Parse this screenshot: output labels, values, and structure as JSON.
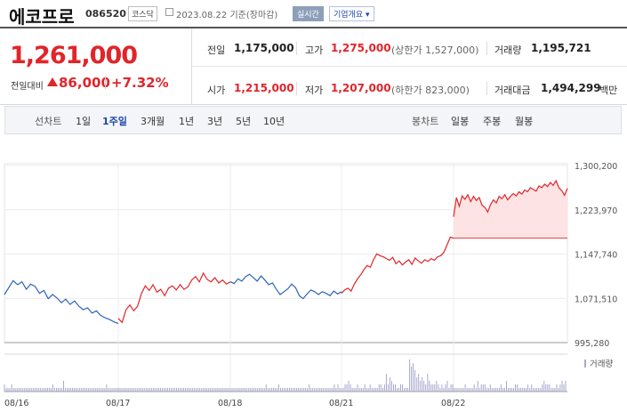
{
  "header": {
    "name": "에코프로",
    "code": "086520",
    "market": "코스닥",
    "date": "2023.08.22",
    "basis": "기준(장마감)",
    "realtime_badge": "실시간",
    "company_overview": "기업개요"
  },
  "price": {
    "current": "1,261,000",
    "change_label": "전일대비",
    "change_value": "86,000",
    "change_pct": "+7.32%"
  },
  "stats": {
    "prev_close_label": "전일",
    "prev_close": "1,175,000",
    "high_label": "고가",
    "high": "1,275,000",
    "upper_limit": "(상한가 1,527,000)",
    "volume_label": "거래량",
    "volume": "1,195,721",
    "open_label": "시가",
    "open": "1,215,000",
    "low_label": "저가",
    "low": "1,207,000",
    "lower_limit": "(하한가 823,000)",
    "amount_label": "거래대금",
    "amount": "1,494,299",
    "amount_unit": "백만"
  },
  "period_bar": {
    "line_label": "선차트",
    "line_items": [
      "1일",
      "1주일",
      "3개월",
      "1년",
      "3년",
      "5년",
      "10년"
    ],
    "active": "1주일",
    "candle_label": "봉차트",
    "candle_items": [
      "일봉",
      "주봉",
      "월봉"
    ]
  },
  "colors": {
    "up": "#e1252a",
    "down": "#2b64b8",
    "fill": "#fde3e4",
    "volume": "#a8a8d0"
  },
  "chart_data": {
    "type": "line",
    "x_ticks": [
      "08/16",
      "08/17",
      "08/18",
      "08/21",
      "08/22"
    ],
    "y_ticks": [
      "1,300,200",
      "1,223,970",
      "1,147,740",
      "1,071,510",
      "995,280"
    ],
    "ylim": [
      995280,
      1300200
    ],
    "reference_close": 1175000,
    "legend": [
      "거래량"
    ],
    "grid": true,
    "series": [
      {
        "segment": "08/16",
        "values": [
          1078000,
          1090000,
          1102000,
          1095000,
          1100000,
          1087000,
          1096000,
          1092000,
          1080000,
          1085000,
          1071000,
          1078000,
          1072000,
          1064000,
          1070000,
          1061000,
          1067000,
          1058000,
          1052000,
          1055000,
          1046000,
          1050000,
          1042000,
          1038000,
          1035000,
          1031000,
          1028000
        ]
      },
      {
        "segment": "08/17",
        "values": [
          1037000,
          1030000,
          1052000,
          1060000,
          1050000,
          1058000,
          1080000,
          1093000,
          1085000,
          1095000,
          1082000,
          1087000,
          1076000,
          1089000,
          1093000,
          1086000,
          1095000,
          1087000,
          1091000,
          1103000,
          1109000,
          1100000,
          1115000,
          1104000,
          1100000,
          1107000,
          1098000,
          1103000,
          1096000,
          1100000
        ]
      },
      {
        "segment": "08/18",
        "values": [
          1100000,
          1097000,
          1105000,
          1101000,
          1109000,
          1113000,
          1107000,
          1101000,
          1110000,
          1103000,
          1095000,
          1098000,
          1087000,
          1078000,
          1083000,
          1088000,
          1096000,
          1090000,
          1076000,
          1071000,
          1079000,
          1086000,
          1083000,
          1078000,
          1083000,
          1080000,
          1076000,
          1084000,
          1079000,
          1083000
        ]
      },
      {
        "segment": "08/21",
        "values": [
          1080000,
          1086000,
          1089000,
          1084000,
          1096000,
          1105000,
          1112000,
          1121000,
          1128000,
          1125000,
          1138000,
          1148000,
          1145000,
          1143000,
          1140000,
          1137000,
          1142000,
          1131000,
          1136000,
          1129000,
          1134000,
          1138000,
          1130000,
          1141000,
          1136000,
          1132000,
          1138000,
          1135000,
          1140000,
          1137000,
          1143000,
          1145000,
          1151000,
          1164000,
          1177000,
          1175000
        ]
      },
      {
        "segment": "08/22",
        "values": [
          1212000,
          1245000,
          1230000,
          1248000,
          1242000,
          1250000,
          1238000,
          1247000,
          1240000,
          1245000,
          1232000,
          1228000,
          1220000,
          1233000,
          1241000,
          1236000,
          1247000,
          1243000,
          1250000,
          1241000,
          1247000,
          1252000,
          1248000,
          1255000,
          1251000,
          1258000,
          1255000,
          1262000,
          1259000,
          1256000,
          1265000,
          1262000,
          1268000,
          1264000,
          1271000,
          1266000,
          1274000,
          1262000,
          1257000,
          1249000,
          1261000
        ]
      }
    ],
    "volume_values": [
      2,
      1,
      1,
      1,
      2,
      1,
      1,
      1,
      1,
      1,
      1,
      1,
      1,
      1,
      1,
      1,
      1,
      1,
      1,
      1,
      1,
      1,
      1,
      1,
      1,
      1,
      1,
      2,
      1,
      1,
      1,
      1,
      1,
      3,
      1,
      1,
      1,
      1,
      1,
      1,
      1,
      1,
      1,
      1,
      1,
      1,
      1,
      1,
      1,
      1,
      1,
      1,
      1,
      1,
      1,
      1,
      1,
      2,
      1,
      1,
      1,
      1,
      1,
      1,
      1,
      1,
      1,
      1,
      1,
      1,
      1,
      1,
      1,
      1,
      1,
      1,
      1,
      1,
      1,
      1,
      1,
      1,
      1,
      1,
      1,
      1,
      1,
      1,
      1,
      1,
      1,
      1,
      1,
      1,
      1,
      1,
      1,
      1,
      1,
      1,
      1,
      1,
      1,
      1,
      1,
      1,
      1,
      1,
      1,
      1,
      1,
      1,
      1,
      1,
      1,
      1,
      1,
      1,
      1,
      1,
      1,
      1,
      1,
      1,
      1,
      1,
      1,
      1,
      1,
      1,
      1,
      1,
      1,
      1,
      1,
      1,
      1,
      1,
      1,
      1,
      1,
      1,
      1,
      1,
      1,
      1,
      2,
      1,
      1,
      1,
      1,
      1,
      1,
      2,
      1,
      1,
      1,
      1,
      1,
      1,
      1,
      1,
      1,
      1,
      1,
      1,
      1,
      1,
      1,
      1,
      2,
      1,
      1,
      1,
      1,
      1,
      1,
      1,
      1,
      1,
      1,
      1,
      1,
      1,
      2,
      1,
      2,
      1,
      1,
      1,
      2,
      2,
      3,
      2,
      1,
      1,
      1,
      2,
      1,
      1,
      1,
      2,
      1,
      1,
      2,
      1,
      1,
      1,
      1,
      2,
      2,
      1,
      2,
      5,
      2,
      4,
      3,
      2,
      2,
      1,
      1,
      2,
      2,
      1,
      1,
      1,
      9,
      7,
      8,
      6,
      4,
      5,
      3,
      4,
      3,
      2,
      5,
      3,
      2,
      2,
      2,
      3,
      2,
      1,
      2,
      1,
      2,
      3,
      1,
      2,
      2,
      1,
      1,
      1,
      1,
      1,
      1,
      2,
      1,
      1,
      1,
      1,
      2,
      1,
      3,
      1,
      2,
      2,
      2,
      1,
      1,
      2,
      1,
      1,
      1,
      1,
      1,
      2,
      1,
      1,
      3,
      1,
      1,
      1,
      1,
      2,
      2,
      1,
      1,
      1,
      1,
      1,
      2,
      1,
      2,
      1,
      1,
      1,
      1,
      1,
      2,
      3,
      2,
      2,
      2,
      1,
      1,
      1,
      2,
      1,
      2,
      3,
      2,
      3
    ]
  }
}
